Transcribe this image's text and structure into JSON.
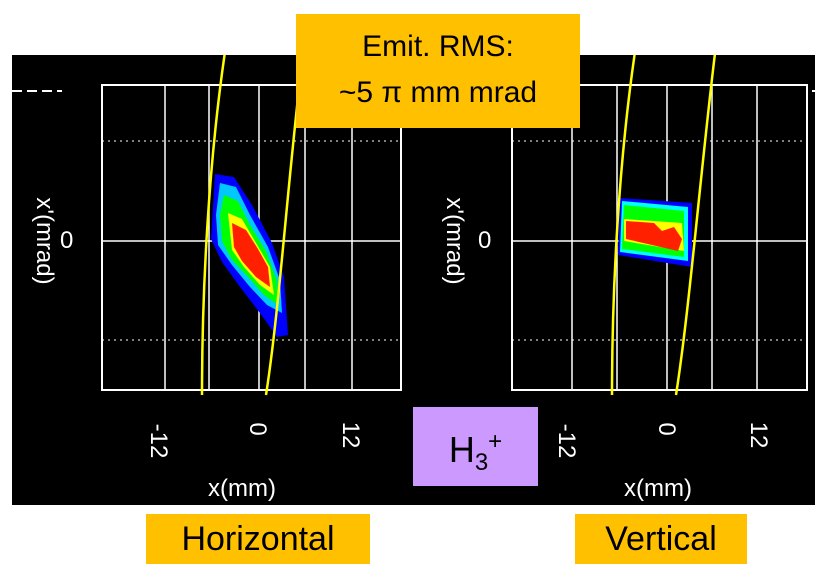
{
  "emittance_box": {
    "line1": "Emit. RMS:",
    "line2": "~5 π mm mrad"
  },
  "ion_box": {
    "base": "H",
    "sub": "3",
    "sup": "+"
  },
  "chart_data": [
    {
      "type": "heatmap",
      "title": "Horizontal",
      "xlabel": "x(mm)",
      "ylabel": "x'(mrad)",
      "x_ticks": [
        "-12",
        "0",
        "12"
      ],
      "y_ticks": [
        "0"
      ],
      "grid": true,
      "colormap": [
        "#0000ff",
        "#00ffff",
        "#00ff00",
        "#ffff00",
        "#ff0000"
      ],
      "ellipse_color": "#ffff00"
    },
    {
      "type": "heatmap",
      "title": "Vertical",
      "xlabel": "x(mm)",
      "ylabel": "x'(mrad)",
      "x_ticks": [
        "-12",
        "0",
        "12"
      ],
      "y_ticks": [
        "0"
      ],
      "grid": true,
      "colormap": [
        "#0000ff",
        "#00ffff",
        "#00ff00",
        "#ffff00",
        "#ff0000"
      ],
      "ellipse_color": "#ffff00"
    }
  ],
  "colors": {
    "callout": "#ffc000",
    "ion_callout": "#cc99ff",
    "panel": "#000000"
  }
}
